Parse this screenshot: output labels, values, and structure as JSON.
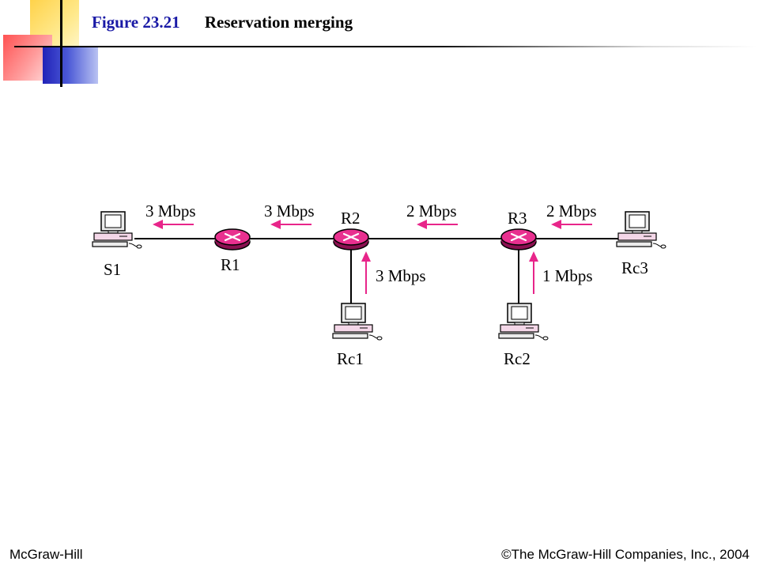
{
  "header": {
    "figure_number": "Figure 23.21",
    "figure_title": "Reservation merging"
  },
  "footer": {
    "publisher": "McGraw-Hill",
    "copyright": "©The McGraw-Hill Companies, Inc., 2004"
  },
  "colors": {
    "arrow": "#e8258a",
    "router_fill": "#e8308f",
    "figure_number": "#1a1aa6"
  },
  "diagram": {
    "nodes": {
      "s1": "S1",
      "r1": "R1",
      "r2": "R2",
      "r3": "R3",
      "rc1": "Rc1",
      "rc2": "Rc2",
      "rc3": "Rc3"
    },
    "links": {
      "r1_s1": "3 Mbps",
      "r2_r1": "3 Mbps",
      "r3_r2": "2 Mbps",
      "rc3_r3": "2 Mbps",
      "rc1_r2": "3 Mbps",
      "rc2_r3": "1 Mbps"
    }
  }
}
